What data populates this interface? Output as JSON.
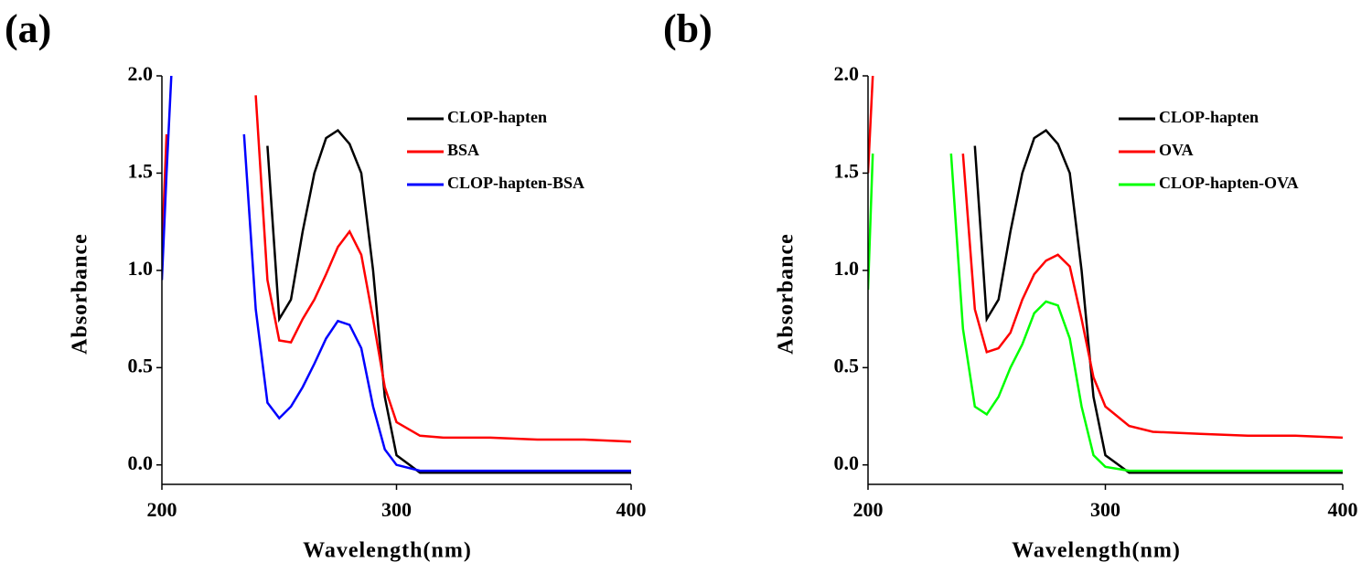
{
  "chart_data": [
    {
      "type": "line",
      "label": "(a)",
      "xlabel": "Wavelength(nm)",
      "ylabel": "Absorbance",
      "x": [
        200,
        202,
        204,
        230,
        235,
        240,
        245,
        250,
        255,
        260,
        265,
        270,
        275,
        280,
        285,
        290,
        295,
        300,
        310,
        320,
        340,
        360,
        380,
        400
      ],
      "series": [
        {
          "name": "CLOP-hapten",
          "color": "#000000",
          "values": [
            null,
            null,
            null,
            null,
            null,
            null,
            1.64,
            0.75,
            0.85,
            1.2,
            1.5,
            1.68,
            1.72,
            1.65,
            1.5,
            1.0,
            0.35,
            0.05,
            -0.04,
            -0.04,
            -0.04,
            -0.04,
            -0.04,
            -0.04
          ]
        },
        {
          "name": "BSA",
          "color": "#ff0000",
          "values": [
            1.1,
            1.7,
            null,
            null,
            null,
            1.9,
            0.95,
            0.64,
            0.63,
            0.75,
            0.85,
            0.98,
            1.12,
            1.2,
            1.08,
            0.75,
            0.4,
            0.22,
            0.15,
            0.14,
            0.14,
            0.13,
            0.13,
            0.12
          ]
        },
        {
          "name": "CLOP-hapten-BSA",
          "color": "#0000ff",
          "values": [
            0.95,
            1.5,
            2.0,
            null,
            1.7,
            0.8,
            0.32,
            0.24,
            0.3,
            0.4,
            0.52,
            0.65,
            0.74,
            0.72,
            0.6,
            0.3,
            0.08,
            0.0,
            -0.03,
            -0.03,
            -0.03,
            -0.03,
            -0.03,
            -0.03
          ]
        }
      ],
      "xlim": [
        200,
        400
      ],
      "ylim": [
        -0.1,
        2.0
      ],
      "xticks": [
        200,
        300,
        400
      ],
      "yticks": [
        {
          "value": 0,
          "label": "0.0"
        },
        0.5,
        {
          "value": 1,
          "label": "1.0"
        },
        1.5,
        {
          "value": 2,
          "label": "2.0"
        }
      ],
      "legend": "upper right"
    },
    {
      "type": "line",
      "label": "(b)",
      "xlabel": "Wavelength(nm)",
      "ylabel": "Absorbance",
      "x": [
        200,
        202,
        204,
        230,
        235,
        240,
        245,
        250,
        255,
        260,
        265,
        270,
        275,
        280,
        285,
        290,
        295,
        300,
        310,
        320,
        340,
        360,
        380,
        400
      ],
      "series": [
        {
          "name": "CLOP-hapten",
          "color": "#000000",
          "values": [
            null,
            null,
            null,
            null,
            null,
            null,
            1.64,
            0.75,
            0.85,
            1.2,
            1.5,
            1.68,
            1.72,
            1.65,
            1.5,
            1.0,
            0.35,
            0.05,
            -0.04,
            -0.04,
            -0.04,
            -0.04,
            -0.04,
            -0.04
          ]
        },
        {
          "name": "OVA",
          "color": "#ff0000",
          "values": [
            1.5,
            2.0,
            null,
            null,
            null,
            1.6,
            0.8,
            0.58,
            0.6,
            0.68,
            0.85,
            0.98,
            1.05,
            1.08,
            1.02,
            0.75,
            0.45,
            0.3,
            0.2,
            0.17,
            0.16,
            0.15,
            0.15,
            0.14
          ]
        },
        {
          "name": "CLOP-hapten-OVA",
          "color": "#00ff00",
          "values": [
            0.9,
            1.6,
            null,
            null,
            1.6,
            0.7,
            0.3,
            0.26,
            0.35,
            0.5,
            0.62,
            0.78,
            0.84,
            0.82,
            0.65,
            0.3,
            0.05,
            -0.01,
            -0.03,
            -0.03,
            -0.03,
            -0.03,
            -0.03,
            -0.03
          ]
        }
      ],
      "xlim": [
        200,
        400
      ],
      "ylim": [
        -0.1,
        2.0
      ],
      "xticks": [
        200,
        300,
        400
      ],
      "yticks": [
        {
          "value": 0,
          "label": "0.0"
        },
        0.5,
        {
          "value": 1,
          "label": "1.0"
        },
        1.5,
        {
          "value": 2,
          "label": "2.0"
        }
      ],
      "legend": "upper right"
    }
  ]
}
